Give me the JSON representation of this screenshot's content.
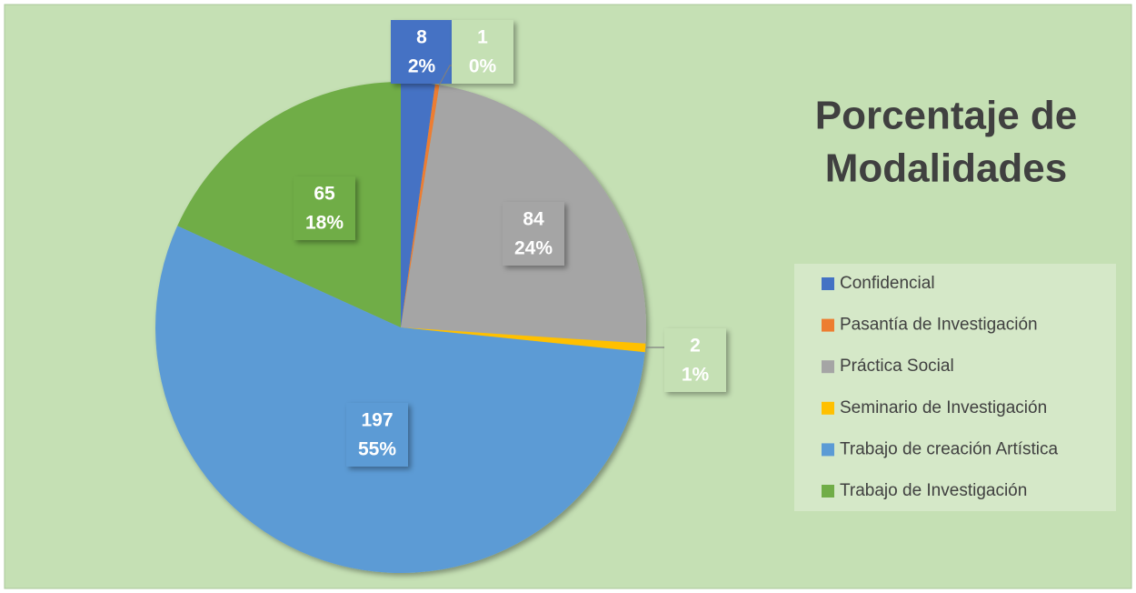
{
  "chart_data": {
    "type": "pie",
    "title_lines": [
      "Porcentaje de",
      "Modalidades"
    ],
    "categories": [
      "Confidencial",
      "Pasantía de Investigación",
      "Práctica Social",
      "Seminario de Investigación",
      "Trabajo de creación Artística",
      "Trabajo de Investigación"
    ],
    "values": [
      8,
      1,
      84,
      2,
      197,
      65
    ],
    "percent_labels": [
      "2%",
      "0%",
      "24%",
      "1%",
      "55%",
      "18%"
    ],
    "colors": [
      "#4472c4",
      "#ed7d31",
      "#a5a5a5",
      "#ffc000",
      "#5b9bd5",
      "#70ad47"
    ],
    "legend": "right"
  }
}
